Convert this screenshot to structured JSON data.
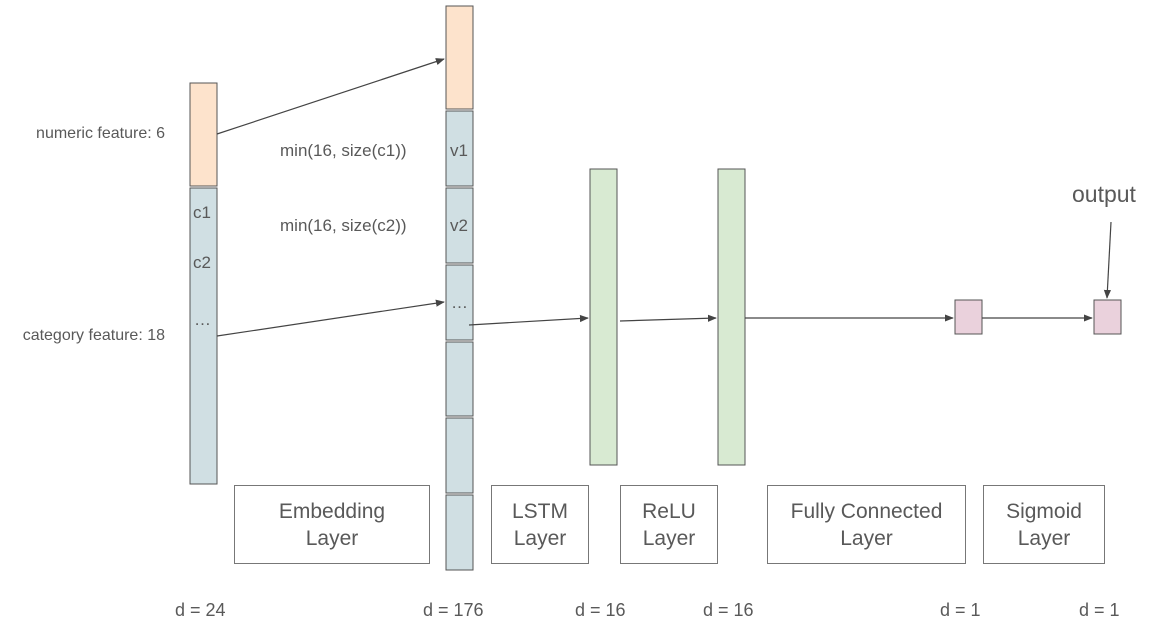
{
  "inputs": {
    "numeric_label": "numeric feature: 6",
    "category_label": "category feature: 18",
    "cells": [
      "c1",
      "c2",
      "…"
    ]
  },
  "embedding": {
    "formulas": [
      "min(16, size(c1))",
      "min(16, size(c2))"
    ],
    "cells": [
      "v1",
      "v2",
      "…"
    ]
  },
  "layers": {
    "embedding": [
      "Embedding",
      "Layer"
    ],
    "lstm": [
      "LSTM",
      "Layer"
    ],
    "relu": [
      "ReLU",
      "Layer"
    ],
    "fc": [
      "Fully Connected",
      "Layer"
    ],
    "sigmoid": [
      "Sigmoid",
      "Layer"
    ]
  },
  "output_label": "output",
  "dims": {
    "input": "d = 24",
    "embedding": "d = 176",
    "lstm": "d = 16",
    "relu": "d = 16",
    "fc": "d = 1",
    "sigmoid": "d = 1"
  },
  "colors": {
    "numeric_fill": "#fde3cc",
    "category_fill": "#d0dfe3",
    "hidden_fill": "#d8ead2",
    "output_fill": "#ead1dc",
    "stroke": "#555555",
    "arrow": "#444444"
  }
}
